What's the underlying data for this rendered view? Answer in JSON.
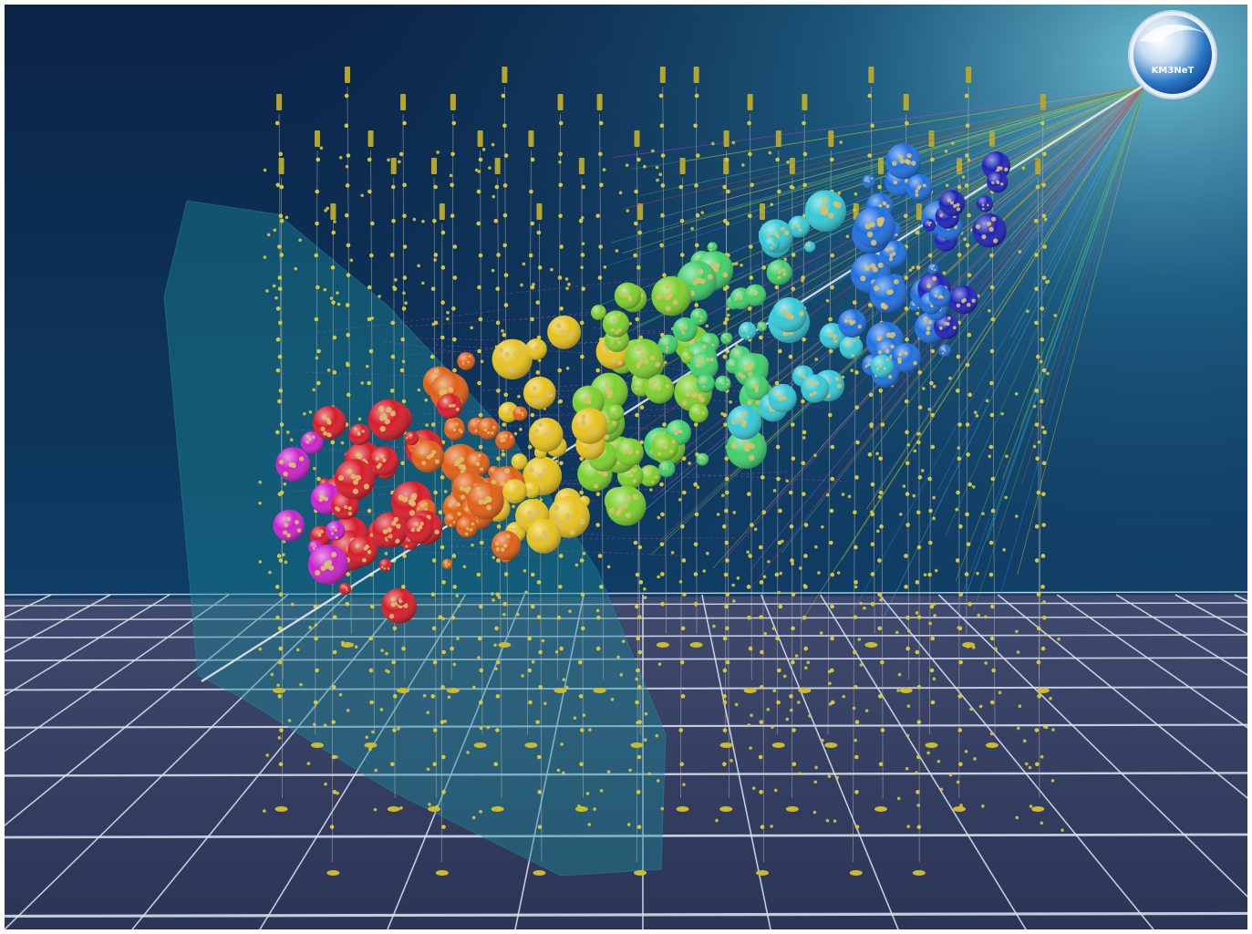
{
  "logo": {
    "text": "KM3NeT"
  },
  "colors": {
    "sky_top": "#0b2447",
    "sky_bottom": "#15527a",
    "floor": "#3a4468",
    "grid_line": "#dfe6f2",
    "sensor": "#d8c63a",
    "cable": "#bfc3b5",
    "track": "#e8e8ec",
    "shadow_plane": "#1a7f8f",
    "hit_gradient": [
      "#cc22cc",
      "#d81c2a",
      "#e05f16",
      "#e6c21c",
      "#7bcf2c",
      "#3fcf6a",
      "#34c9d6",
      "#1e6fe0",
      "#1e22b8"
    ]
  },
  "icons": {
    "logo": "km3net-globe-icon",
    "sensor": "optical-module-icon",
    "hit": "hit-sphere-icon"
  }
}
